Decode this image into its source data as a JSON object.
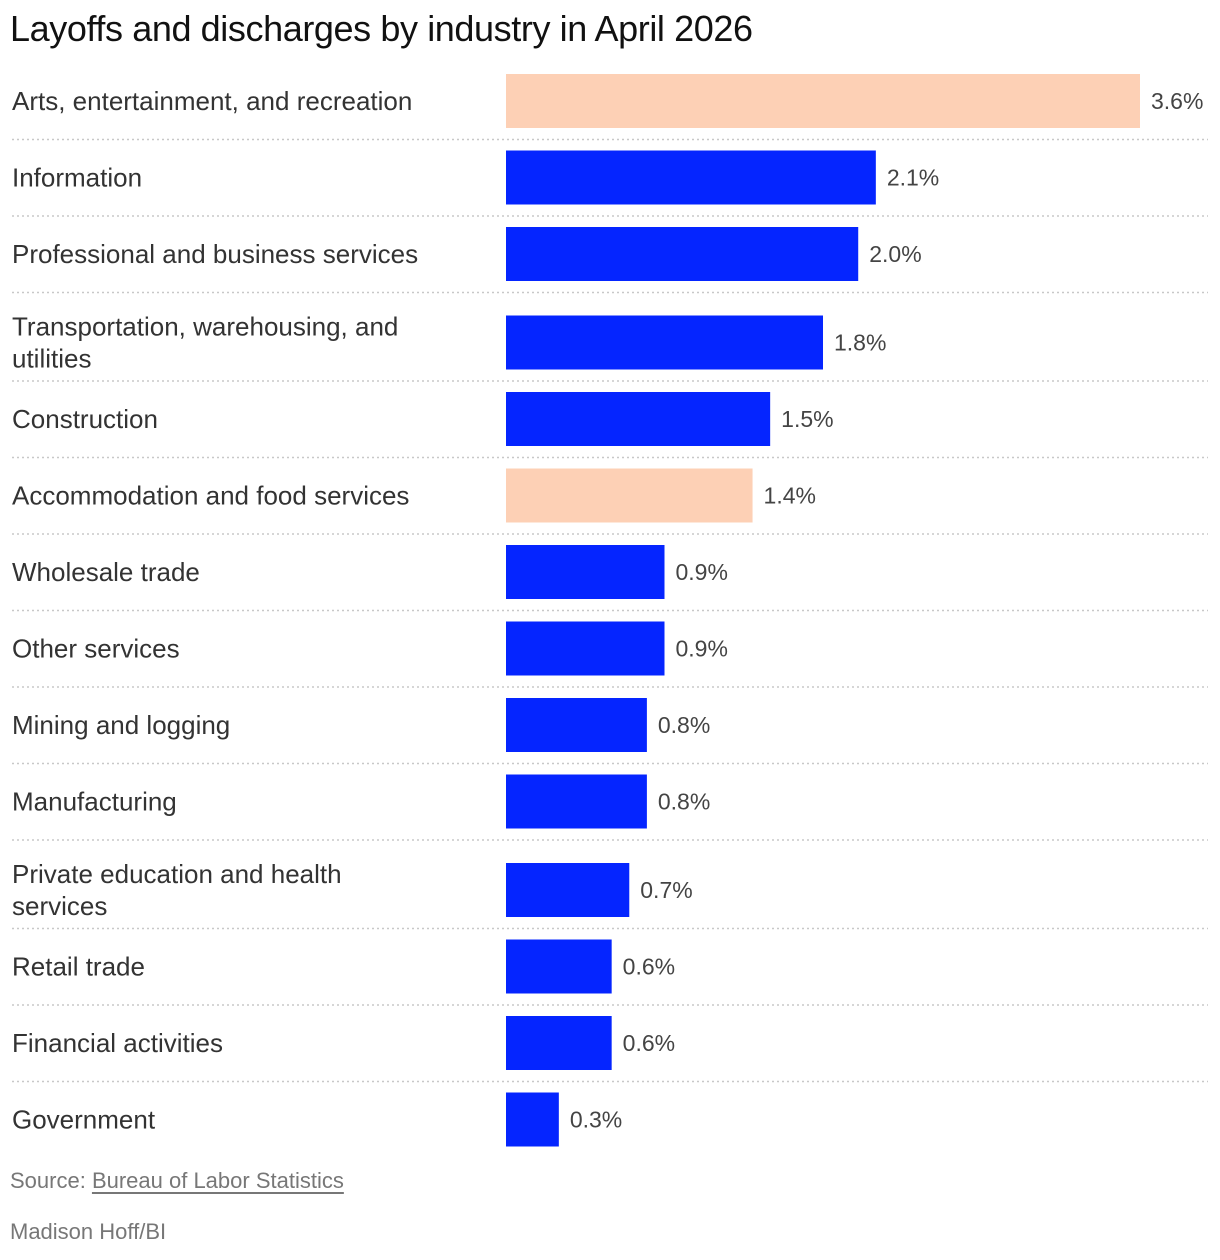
{
  "chart_data": {
    "type": "bar",
    "orientation": "horizontal",
    "title": "Layoffs and discharges by industry in April 2026",
    "unit": "%",
    "categories": [
      [
        "Arts, entertainment, and recreation"
      ],
      [
        "Information"
      ],
      [
        "Professional and business services"
      ],
      [
        "Transportation, warehousing, and",
        "utilities"
      ],
      [
        "Construction"
      ],
      [
        "Accommodation and food services"
      ],
      [
        "Wholesale trade"
      ],
      [
        "Other services"
      ],
      [
        "Mining and logging"
      ],
      [
        "Manufacturing"
      ],
      [
        "Private education and health",
        "services"
      ],
      [
        "Retail trade"
      ],
      [
        "Financial activities"
      ],
      [
        "Government"
      ]
    ],
    "values": [
      3.6,
      2.1,
      2.0,
      1.8,
      1.5,
      1.4,
      0.9,
      0.9,
      0.8,
      0.8,
      0.7,
      0.6,
      0.6,
      0.3
    ],
    "value_labels": [
      "3.6%",
      "2.1%",
      "2.0%",
      "1.8%",
      "1.5%",
      "1.4%",
      "0.9%",
      "0.9%",
      "0.8%",
      "0.8%",
      "0.7%",
      "0.6%",
      "0.6%",
      "0.3%"
    ],
    "highlighted": [
      true,
      false,
      false,
      false,
      false,
      true,
      false,
      false,
      false,
      false,
      false,
      false,
      false,
      false
    ],
    "xlim": [
      0,
      3.6
    ],
    "grid": false,
    "legend": "none",
    "colors": {
      "default": "#0525ff",
      "highlight": "#fdd0b5",
      "separator": "#c8c8c8"
    }
  },
  "footer": {
    "source_prefix": "Source: ",
    "source_link": "Bureau of Labor Statistics",
    "credit": "Madison Hoff/BI"
  }
}
